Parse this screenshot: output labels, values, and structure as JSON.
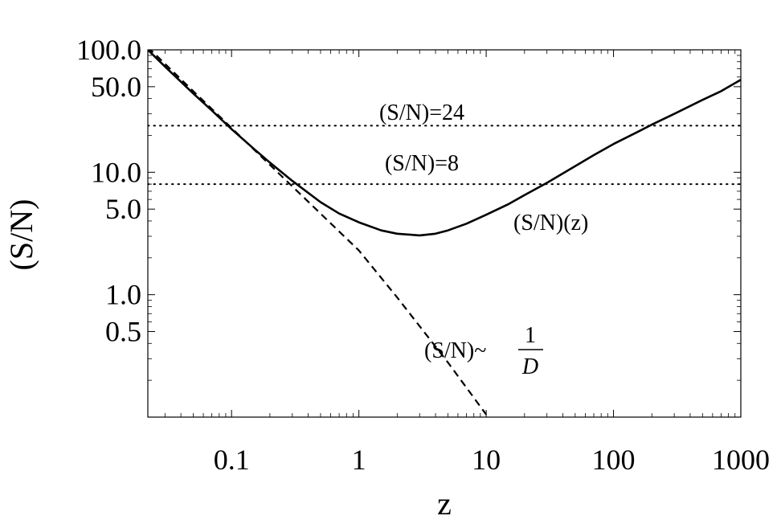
{
  "chart_data": {
    "type": "line",
    "xlabel": "z",
    "ylabel": "(S/N)",
    "xscale": "log",
    "yscale": "log",
    "xlim": [
      0.022,
      1000
    ],
    "ylim": [
      0.1,
      100
    ],
    "x_ticks": [
      {
        "value": 0.1,
        "label": "0.1"
      },
      {
        "value": 1,
        "label": "1"
      },
      {
        "value": 10,
        "label": "10"
      },
      {
        "value": 100,
        "label": "100"
      },
      {
        "value": 1000,
        "label": "1000"
      }
    ],
    "y_ticks": [
      {
        "value": 100,
        "label": "100.0"
      },
      {
        "value": 50,
        "label": "50.0"
      },
      {
        "value": 10,
        "label": "10.0"
      },
      {
        "value": 5,
        "label": "5.0"
      },
      {
        "value": 1,
        "label": "1.0"
      },
      {
        "value": 0.5,
        "label": "0.5"
      }
    ],
    "grid": false,
    "series": [
      {
        "style": "solid",
        "x": [
          0.022,
          0.03,
          0.05,
          0.07,
          0.1,
          0.15,
          0.2,
          0.3,
          0.5,
          0.7,
          1,
          1.5,
          2,
          3,
          4,
          5,
          7,
          10,
          15,
          20,
          30,
          50,
          70,
          100,
          150,
          200,
          300,
          500,
          700,
          1000
        ],
        "y": [
          100,
          73,
          44,
          32,
          22.5,
          15.5,
          12,
          8.5,
          5.7,
          4.6,
          3.9,
          3.35,
          3.15,
          3.05,
          3.15,
          3.35,
          3.8,
          4.5,
          5.5,
          6.5,
          8.2,
          11.2,
          13.8,
          17,
          21,
          24.5,
          30,
          39,
          46,
          57
        ]
      },
      {
        "style": "dashed",
        "x": [
          0.022,
          0.05,
          0.1,
          0.2,
          0.5,
          1,
          2,
          5,
          10
        ],
        "y": [
          105,
          46,
          23,
          11.5,
          4.6,
          2.3,
          0.95,
          0.28,
          0.105
        ]
      }
    ],
    "reference_lines": [
      {
        "y": 24,
        "style": "dotted"
      },
      {
        "y": 8,
        "style": "dotted"
      }
    ],
    "annotations": [
      {
        "id": "sn24",
        "text": "(S/N)=24"
      },
      {
        "id": "sn8",
        "text": "(S/N)=8"
      },
      {
        "id": "snz",
        "text": "(S/N)(z)"
      },
      {
        "id": "sn_inv_d",
        "text": "(S/N)~",
        "numerator": "1",
        "denominator": "D"
      }
    ]
  }
}
